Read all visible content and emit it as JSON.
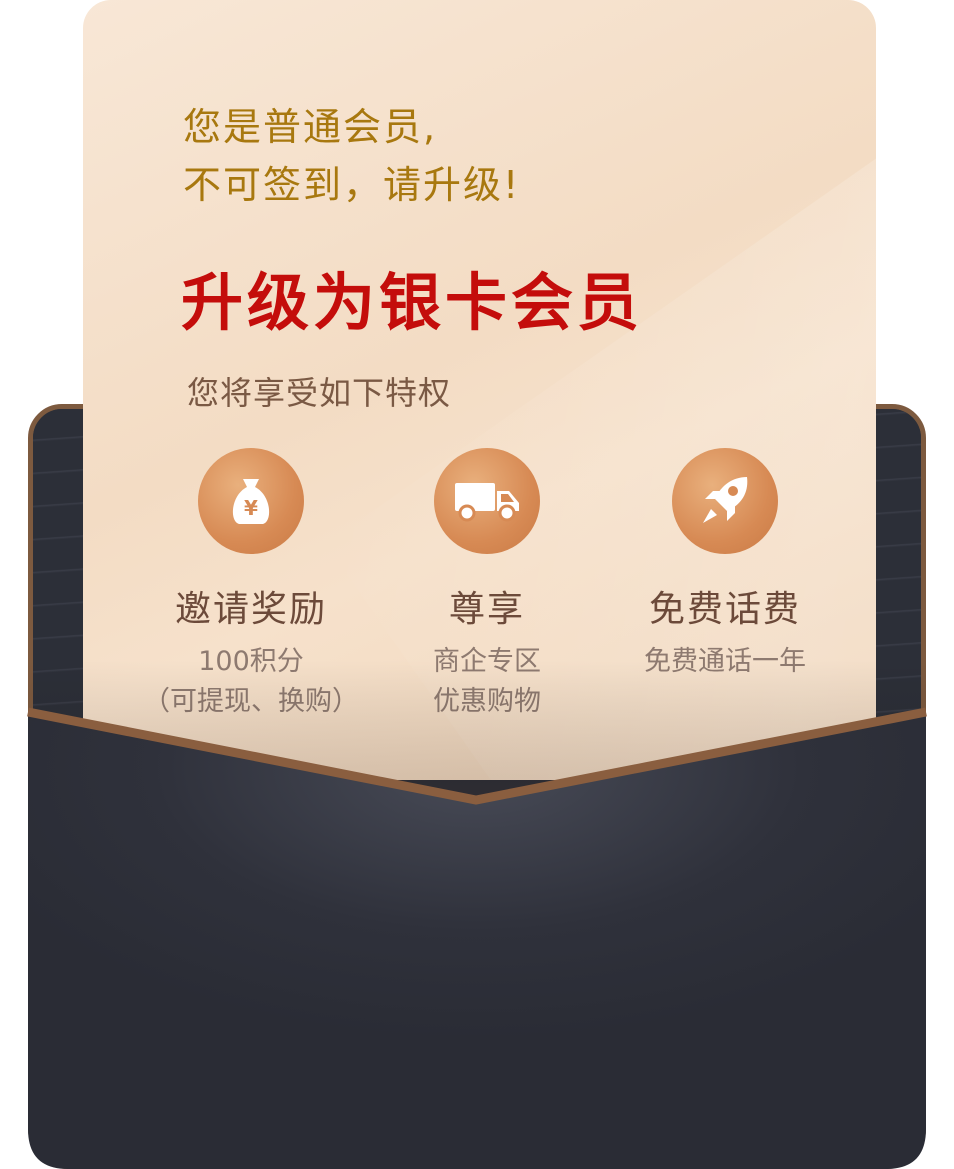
{
  "notice": {
    "line1": "您是普通会员,",
    "line2": "不可签到，请升级!"
  },
  "upgrade_title": "升级为银卡会员",
  "benefits_intro": "您将享受如下特权",
  "benefits": [
    {
      "icon": "money-bag-icon",
      "title": "邀请奖励",
      "desc_line1": "100积分",
      "desc_line2": "（可提现、换购）"
    },
    {
      "icon": "delivery-truck-icon",
      "title": "尊享",
      "desc_line1": "商企专区",
      "desc_line2": "优惠购物"
    },
    {
      "icon": "rocket-icon",
      "title": "免费话费",
      "desc_line1": "免费通话一年",
      "desc_line2": ""
    }
  ],
  "colors": {
    "notice_text": "#a8780f",
    "title_red": "#c40d0b",
    "envelope_dark": "#2b2d36",
    "envelope_border": "#7d5a3f",
    "icon_orange": "#d78a54"
  }
}
